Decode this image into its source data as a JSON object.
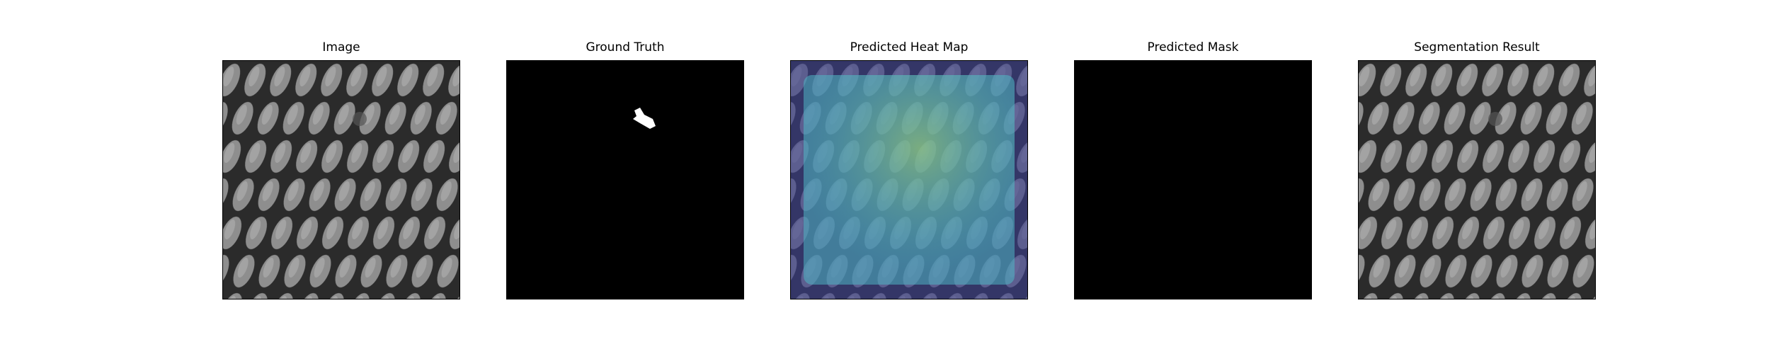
{
  "panels": [
    {
      "id": "image",
      "title": "Image",
      "icon": "textured-mesh-image"
    },
    {
      "id": "ground_truth",
      "title": "Ground Truth",
      "icon": "binary-mask-image"
    },
    {
      "id": "heat_map",
      "title": "Predicted Heat Map",
      "icon": "heatmap-overlay-image"
    },
    {
      "id": "pred_mask",
      "title": "Predicted Mask",
      "icon": "empty-mask-image"
    },
    {
      "id": "segmentation",
      "title": "Segmentation Result",
      "icon": "textured-mesh-image"
    }
  ],
  "colors": {
    "background": "#ffffff",
    "mesh_dark": "#2b2b2b",
    "mesh_cell": "#8e8e8e",
    "mask_background": "#000000",
    "mask_foreground": "#ffffff",
    "heat_low": "#3a3d8f",
    "heat_mid": "#4fb6c4",
    "heat_high": "#a8d46a"
  }
}
